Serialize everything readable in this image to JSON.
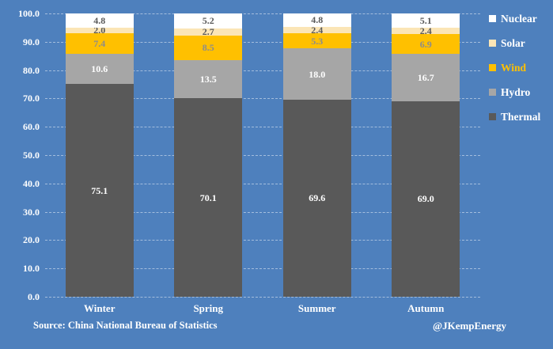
{
  "chart_data": {
    "type": "bar",
    "stacked": true,
    "categories": [
      "Winter",
      "Spring",
      "Summer",
      "Autumn"
    ],
    "series": [
      {
        "name": "Thermal",
        "color": "#595959",
        "label_color": "#FFFFFF",
        "values": [
          75.1,
          70.1,
          69.6,
          69.0
        ]
      },
      {
        "name": "Hydro",
        "color": "#A6A6A6",
        "label_color": "#FFFFFF",
        "values": [
          10.6,
          13.5,
          18.0,
          16.7
        ]
      },
      {
        "name": "Wind",
        "color": "#FFC000",
        "label_color": "#8C8C8C",
        "values": [
          7.4,
          8.5,
          5.3,
          6.9
        ]
      },
      {
        "name": "Solar",
        "color": "#FBE5B6",
        "label_color": "#595959",
        "values": [
          2.0,
          2.7,
          2.4,
          2.4
        ]
      },
      {
        "name": "Nuclear",
        "color": "#FFFFFF",
        "label_color": "#595959",
        "values": [
          4.8,
          5.2,
          4.8,
          5.1
        ]
      }
    ],
    "ylim": [
      0,
      100
    ],
    "ytick_step": 10,
    "ytick_decimals": 1,
    "grid": "horizontal-dashed",
    "legend": {
      "position": "right",
      "order": [
        "Nuclear",
        "Solar",
        "Wind",
        "Hydro",
        "Thermal"
      ],
      "label_colors": {
        "Nuclear": "#FFFFFF",
        "Solar": "#FFFFFF",
        "Wind": "#FFC000",
        "Hydro": "#FFFFFF",
        "Thermal": "#FFFFFF"
      }
    }
  },
  "footer": {
    "source": "Source: China National Bureau of Statistics",
    "credit": "@JKempEnergy"
  },
  "colors": {
    "background": "#4E80BD",
    "gridline": "rgba(233,239,247,0.55)",
    "axis_text": "#FFFFFF"
  }
}
